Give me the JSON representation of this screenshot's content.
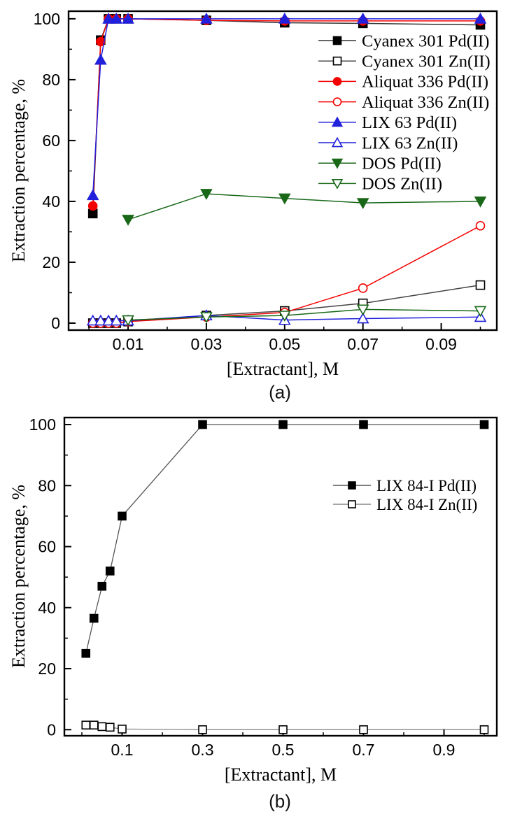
{
  "figures": [
    {
      "caption": "(a)"
    },
    {
      "caption": "(b)"
    }
  ],
  "chart_data": [
    {
      "type": "line",
      "title": "",
      "xlabel": "[Extractant], M",
      "ylabel": "Extraction percentage, %",
      "xlim": [
        0,
        0.105
      ],
      "ylim": [
        0,
        100
      ],
      "grid": false,
      "legend_position": "upper right inside",
      "xticks": [
        0.01,
        0.03,
        0.05,
        0.07,
        0.09
      ],
      "xtick_labels": [
        "0.01",
        "0.03",
        "0.05",
        "0.07",
        "0.09"
      ],
      "xminor": [
        0,
        0.02,
        0.04,
        0.06,
        0.08,
        0.1
      ],
      "yticks": [
        0,
        20,
        40,
        60,
        80,
        100
      ],
      "ytick_labels": [
        "0",
        "20",
        "40",
        "60",
        "80",
        "100"
      ],
      "yminor": [
        10,
        30,
        50,
        70,
        90
      ],
      "series": [
        {
          "name": "Cyanex 301 Pd(II)",
          "color": "#000000",
          "line_color": "#333333",
          "marker": "square",
          "fill": true,
          "x": [
            0.001,
            0.003,
            0.005,
            0.007,
            0.01,
            0.03,
            0.05,
            0.07,
            0.1
          ],
          "y": [
            36,
            93,
            100,
            100,
            100,
            99.5,
            98.7,
            98.5,
            98
          ]
        },
        {
          "name": "Cyanex 301 Zn(II)",
          "color": "#000000",
          "line_color": "#444444",
          "marker": "square",
          "fill": false,
          "x": [
            0.001,
            0.003,
            0.005,
            0.007,
            0.01,
            0.03,
            0.05,
            0.07,
            0.1
          ],
          "y": [
            0,
            0,
            0,
            0,
            0.5,
            2.5,
            4,
            6.5,
            12.5
          ]
        },
        {
          "name": "Aliquat 336 Pd(II)",
          "color": "#f40000",
          "line_color": "#f40000",
          "marker": "circle",
          "fill": true,
          "x": [
            0.001,
            0.003,
            0.005,
            0.007,
            0.01,
            0.03,
            0.05,
            0.07,
            0.1
          ],
          "y": [
            38.5,
            92.5,
            100,
            100,
            100,
            99.5,
            99.3,
            99.3,
            99.3
          ]
        },
        {
          "name": "Aliquat 336 Zn(II)",
          "color": "#f40000",
          "line_color": "#f40000",
          "marker": "circle",
          "fill": false,
          "x": [
            0.001,
            0.003,
            0.005,
            0.007,
            0.01,
            0.03,
            0.05,
            0.07,
            0.1
          ],
          "y": [
            0,
            0,
            0,
            0,
            0.5,
            2,
            3.5,
            11.5,
            32
          ]
        },
        {
          "name": "LIX 63 Pd(II)",
          "color": "#2121dc",
          "line_color": "#2121dc",
          "marker": "triangle-up",
          "fill": true,
          "x": [
            0.001,
            0.003,
            0.005,
            0.007,
            0.01,
            0.03,
            0.05,
            0.07,
            0.1
          ],
          "y": [
            42,
            86.5,
            100,
            100,
            100,
            100,
            100,
            100,
            100
          ]
        },
        {
          "name": "LIX 63 Zn(II)",
          "color": "#2121dc",
          "line_color": "#2121dc",
          "marker": "triangle-up",
          "fill": false,
          "x": [
            0.001,
            0.003,
            0.005,
            0.007,
            0.01,
            0.03,
            0.05,
            0.07,
            0.1
          ],
          "y": [
            0.8,
            0.8,
            0.8,
            0.8,
            0.8,
            2.5,
            1,
            1.5,
            2
          ]
        },
        {
          "name": "DOS Pd(II)",
          "color": "#186818",
          "line_color": "#186818",
          "marker": "triangle-down",
          "fill": true,
          "x": [
            0.01,
            0.03,
            0.05,
            0.07,
            0.1
          ],
          "y": [
            34,
            42.5,
            41,
            39.5,
            40
          ]
        },
        {
          "name": "DOS Zn(II)",
          "color": "#186818",
          "line_color": "#186818",
          "marker": "triangle-down",
          "fill": false,
          "x": [
            0.01,
            0.03,
            0.05,
            0.07,
            0.1
          ],
          "y": [
            1,
            2,
            2.5,
            4.5,
            4
          ]
        }
      ]
    },
    {
      "type": "line",
      "title": "",
      "xlabel": "[Extractant], M",
      "ylabel": "Extraction percentage, %",
      "xlim": [
        0,
        1.03
      ],
      "ylim": [
        0,
        100
      ],
      "grid": false,
      "legend_position": "upper right inside",
      "xticks": [
        0.1,
        0.3,
        0.5,
        0.7,
        0.9
      ],
      "xtick_labels": [
        "0.1",
        "0.3",
        "0.5",
        "0.7",
        "0.9"
      ],
      "xminor": [
        0,
        0.2,
        0.4,
        0.6,
        0.8,
        1.0
      ],
      "yticks": [
        0,
        20,
        40,
        60,
        80,
        100
      ],
      "ytick_labels": [
        "0",
        "20",
        "40",
        "60",
        "80",
        "100"
      ],
      "yminor": [
        10,
        30,
        50,
        70,
        90
      ],
      "series": [
        {
          "name": "LIX 84-I Pd(II)",
          "color": "#000000",
          "line_color": "#555555",
          "marker": "square",
          "fill": true,
          "x": [
            0.01,
            0.03,
            0.05,
            0.07,
            0.1,
            0.3,
            0.5,
            0.7,
            1.0
          ],
          "y": [
            25,
            36.5,
            47,
            52,
            70,
            100,
            100,
            100,
            100
          ]
        },
        {
          "name": "LIX 84-I Zn(II)",
          "color": "#000000",
          "line_color": "#888888",
          "marker": "square",
          "fill": false,
          "x": [
            0.01,
            0.03,
            0.05,
            0.07,
            0.1,
            0.3,
            0.5,
            0.7,
            1.0
          ],
          "y": [
            1.5,
            1.5,
            1,
            0.8,
            0.2,
            0,
            0,
            0,
            0
          ]
        }
      ]
    }
  ]
}
